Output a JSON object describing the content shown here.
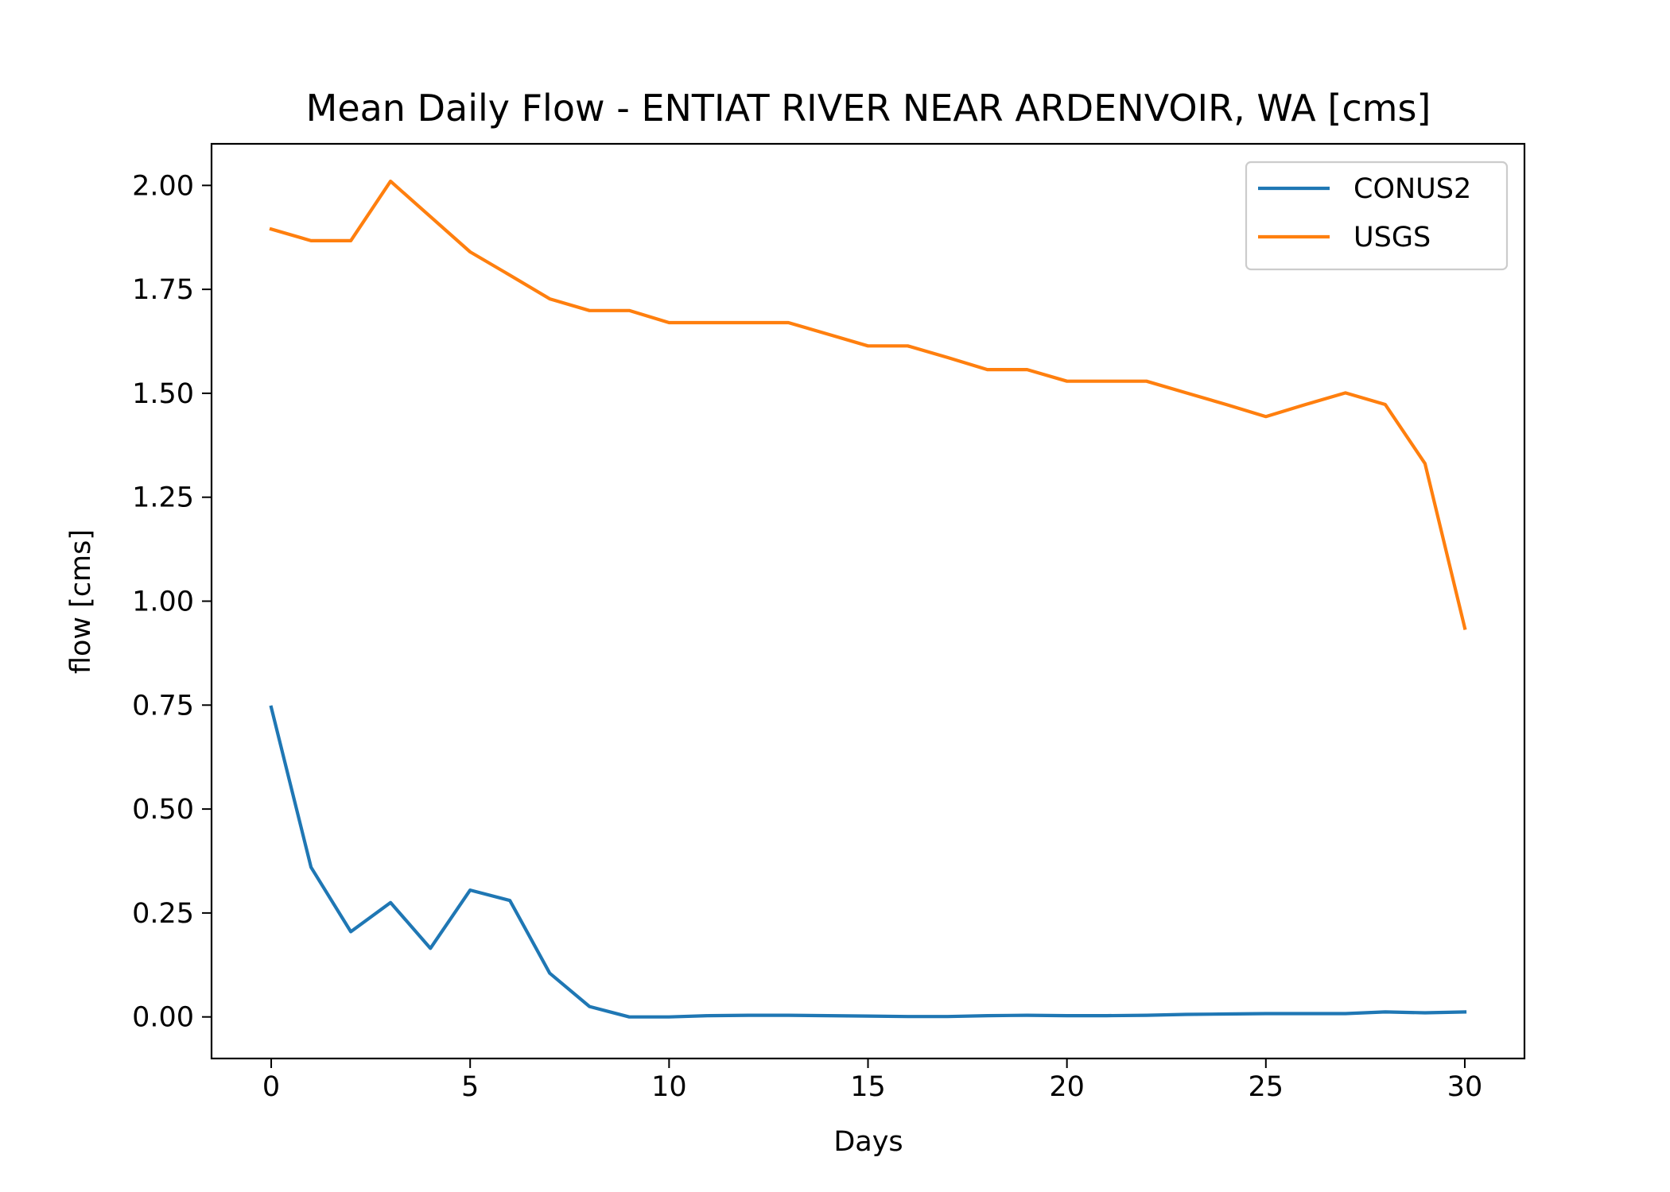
{
  "chart_data": {
    "type": "line",
    "title": "Mean Daily Flow - ENTIAT RIVER NEAR ARDENVOIR, WA [cms]",
    "xlabel": "Days",
    "ylabel": "flow [cms]",
    "xlim": [
      -1.5,
      31.5
    ],
    "ylim": [
      -0.1,
      2.1
    ],
    "xticks": [
      0,
      5,
      10,
      15,
      20,
      25,
      30
    ],
    "xtick_labels": [
      "0",
      "5",
      "10",
      "15",
      "20",
      "25",
      "30"
    ],
    "yticks": [
      0.0,
      0.25,
      0.5,
      0.75,
      1.0,
      1.25,
      1.5,
      1.75,
      2.0
    ],
    "ytick_labels": [
      "0.00",
      "0.25",
      "0.50",
      "0.75",
      "1.00",
      "1.25",
      "1.50",
      "1.75",
      "2.00"
    ],
    "grid": false,
    "legend_position": "top-right",
    "x": [
      0,
      1,
      2,
      3,
      4,
      5,
      6,
      7,
      8,
      9,
      10,
      11,
      12,
      13,
      14,
      15,
      16,
      17,
      18,
      19,
      20,
      21,
      22,
      23,
      24,
      25,
      26,
      27,
      28,
      29,
      30
    ],
    "series": [
      {
        "name": "CONUS2",
        "color": "#1f77b4",
        "values": [
          0.745,
          0.36,
          0.205,
          0.275,
          0.165,
          0.305,
          0.28,
          0.105,
          0.025,
          0.0,
          0.0,
          0.003,
          0.004,
          0.004,
          0.003,
          0.002,
          0.001,
          0.001,
          0.003,
          0.004,
          0.003,
          0.003,
          0.004,
          0.006,
          0.007,
          0.008,
          0.008,
          0.008,
          0.012,
          0.01,
          0.012
        ]
      },
      {
        "name": "USGS",
        "color": "#ff7f0e",
        "values": [
          1.895,
          1.867,
          1.867,
          2.01,
          1.925,
          1.84,
          1.784,
          1.727,
          1.699,
          1.699,
          1.67,
          1.67,
          1.67,
          1.67,
          1.642,
          1.614,
          1.614,
          1.586,
          1.557,
          1.557,
          1.529,
          1.529,
          1.529,
          1.501,
          1.473,
          1.444,
          1.473,
          1.501,
          1.473,
          1.331,
          0.935
        ]
      }
    ]
  }
}
